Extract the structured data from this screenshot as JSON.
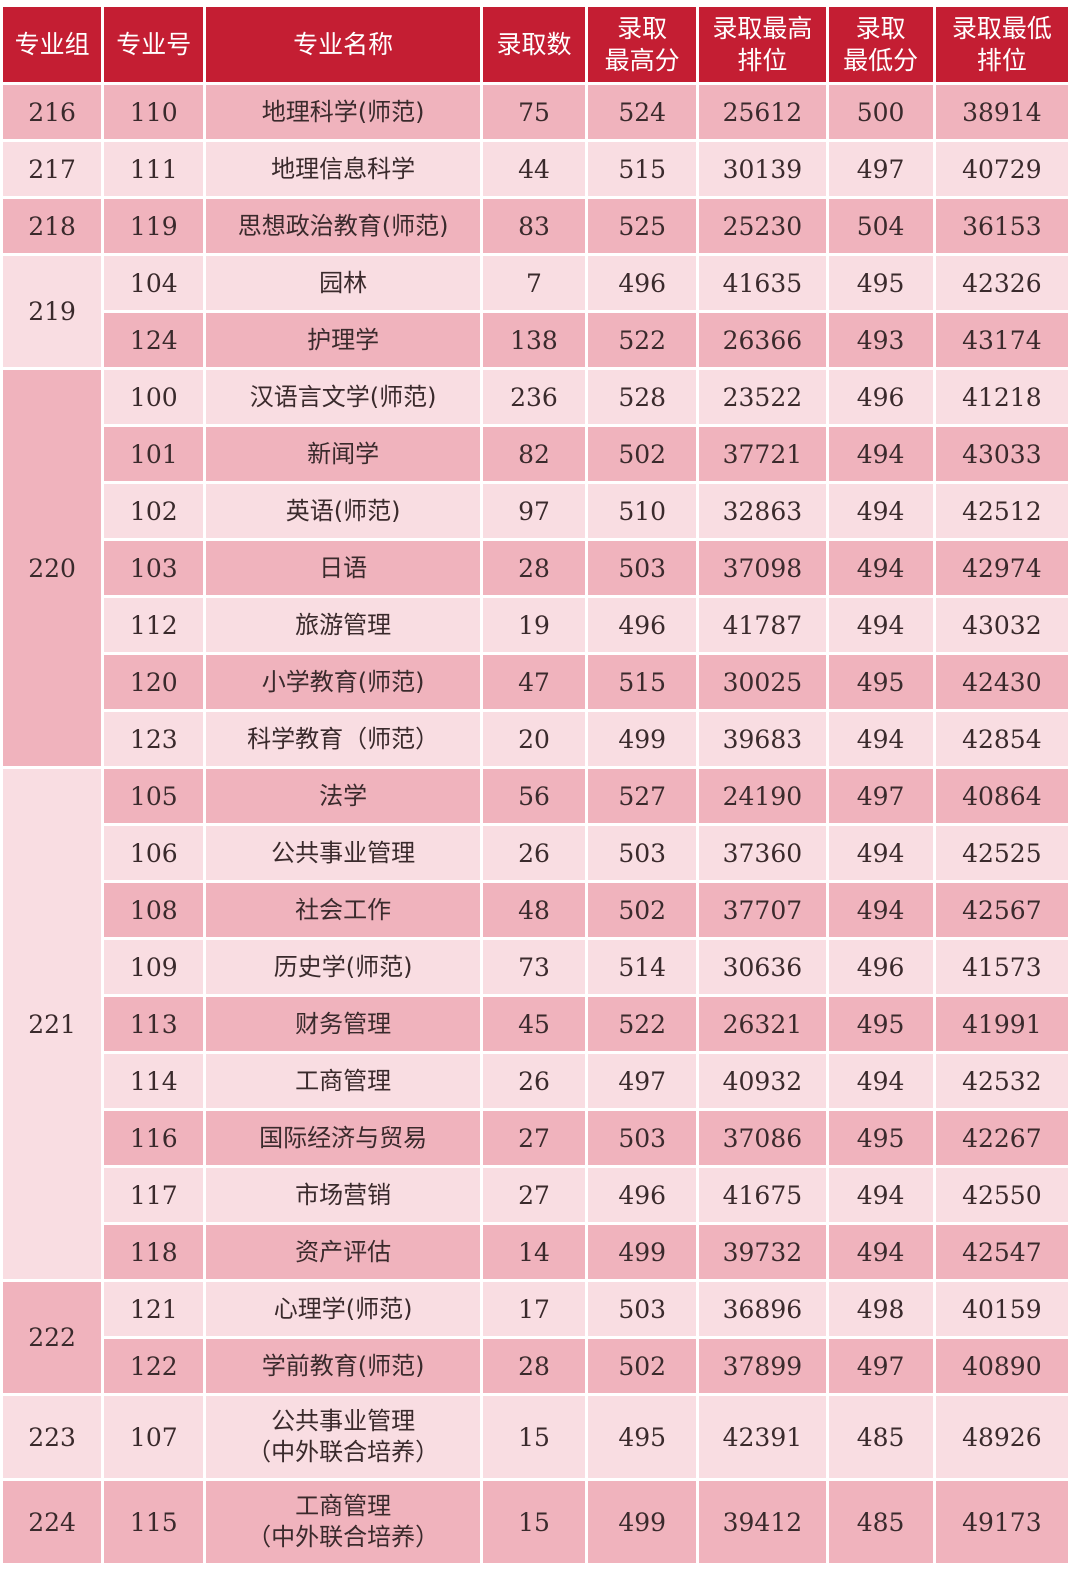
{
  "colors": {
    "header": "#c41e33",
    "row_dark": "#f0b3bd",
    "row_light": "#f9dde2"
  },
  "headers": [
    "专业组",
    "专业号",
    "专业名称",
    "录取数",
    "录取\n最高分",
    "录取最高\n排位",
    "录取\n最低分",
    "录取最低\n排位"
  ],
  "groups": [
    {
      "group": "216",
      "rows": [
        [
          "110",
          "地理科学(师范)",
          "75",
          "524",
          "25612",
          "500",
          "38914"
        ]
      ]
    },
    {
      "group": "217",
      "rows": [
        [
          "111",
          "地理信息科学",
          "44",
          "515",
          "30139",
          "497",
          "40729"
        ]
      ]
    },
    {
      "group": "218",
      "rows": [
        [
          "119",
          "思想政治教育(师范)",
          "83",
          "525",
          "25230",
          "504",
          "36153"
        ]
      ]
    },
    {
      "group": "219",
      "rows": [
        [
          "104",
          "园林",
          "7",
          "496",
          "41635",
          "495",
          "42326"
        ],
        [
          "124",
          "护理学",
          "138",
          "522",
          "26366",
          "493",
          "43174"
        ]
      ]
    },
    {
      "group": "220",
      "rows": [
        [
          "100",
          "汉语言文学(师范)",
          "236",
          "528",
          "23522",
          "496",
          "41218"
        ],
        [
          "101",
          "新闻学",
          "82",
          "502",
          "37721",
          "494",
          "43033"
        ],
        [
          "102",
          "英语(师范)",
          "97",
          "510",
          "32863",
          "494",
          "42512"
        ],
        [
          "103",
          "日语",
          "28",
          "503",
          "37098",
          "494",
          "42974"
        ],
        [
          "112",
          "旅游管理",
          "19",
          "496",
          "41787",
          "494",
          "43032"
        ],
        [
          "120",
          "小学教育(师范)",
          "47",
          "515",
          "30025",
          "495",
          "42430"
        ],
        [
          "123",
          "科学教育（师范）",
          "20",
          "499",
          "39683",
          "494",
          "42854"
        ]
      ]
    },
    {
      "group": "221",
      "rows": [
        [
          "105",
          "法学",
          "56",
          "527",
          "24190",
          "497",
          "40864"
        ],
        [
          "106",
          "公共事业管理",
          "26",
          "503",
          "37360",
          "494",
          "42525"
        ],
        [
          "108",
          "社会工作",
          "48",
          "502",
          "37707",
          "494",
          "42567"
        ],
        [
          "109",
          "历史学(师范)",
          "73",
          "514",
          "30636",
          "496",
          "41573"
        ],
        [
          "113",
          "财务管理",
          "45",
          "522",
          "26321",
          "495",
          "41991"
        ],
        [
          "114",
          "工商管理",
          "26",
          "497",
          "40932",
          "494",
          "42532"
        ],
        [
          "116",
          "国际经济与贸易",
          "27",
          "503",
          "37086",
          "495",
          "42267"
        ],
        [
          "117",
          "市场营销",
          "27",
          "496",
          "41675",
          "494",
          "42550"
        ],
        [
          "118",
          "资产评估",
          "14",
          "499",
          "39732",
          "494",
          "42547"
        ]
      ]
    },
    {
      "group": "222",
      "rows": [
        [
          "121",
          "心理学(师范)",
          "17",
          "503",
          "36896",
          "498",
          "40159"
        ],
        [
          "122",
          "学前教育(师范)",
          "28",
          "502",
          "37899",
          "497",
          "40890"
        ]
      ]
    },
    {
      "group": "223",
      "rows": [
        [
          "107",
          "公共事业管理\n（中外联合培养）",
          "15",
          "495",
          "42391",
          "485",
          "48926"
        ]
      ]
    },
    {
      "group": "224",
      "rows": [
        [
          "115",
          "工商管理\n（中外联合培养）",
          "15",
          "499",
          "39412",
          "485",
          "49173"
        ]
      ]
    }
  ]
}
